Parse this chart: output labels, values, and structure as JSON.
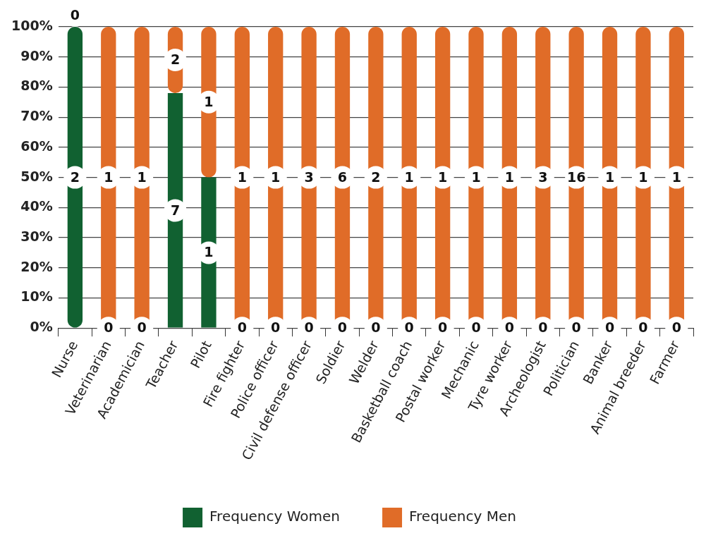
{
  "chart_data": {
    "type": "bar",
    "stacked": true,
    "categories": [
      "Nurse",
      "Veterinarian",
      "Academician",
      "Teacher",
      "Pilot",
      "Fire fighter",
      "Police officer",
      "Civil defense officer",
      "Soldier",
      "Welder",
      "Basketball coach",
      "Postal worker",
      "Mechanic",
      "Tyre worker",
      "Archeologist",
      "Politician",
      "Banker",
      "Animal breeder",
      "Farmer"
    ],
    "series": [
      {
        "name": "Frequency Women",
        "color": "#116131",
        "values": [
          100,
          0,
          0,
          78,
          50,
          0,
          0,
          0,
          0,
          0,
          0,
          0,
          0,
          0,
          0,
          0,
          0,
          0,
          0
        ]
      },
      {
        "name": "Frequency Men",
        "color": "#e06c28",
        "values": [
          0,
          100,
          100,
          22,
          50,
          100,
          100,
          100,
          100,
          100,
          100,
          100,
          100,
          100,
          100,
          100,
          100,
          100,
          100
        ]
      }
    ],
    "annotations": [
      {
        "text": "2",
        "x": "Nurse",
        "y": 50
      },
      {
        "text": "0",
        "x": "Nurse",
        "y": 100
      },
      {
        "text": "0",
        "x": "Veterinarian",
        "y": 0
      },
      {
        "text": "1",
        "x": "Veterinarian",
        "y": 50
      },
      {
        "text": "0",
        "x": "Academician",
        "y": 0
      },
      {
        "text": "1",
        "x": "Academician",
        "y": 50
      },
      {
        "text": "7",
        "x": "Teacher",
        "y": 39
      },
      {
        "text": "2",
        "x": "Teacher",
        "y": 89
      },
      {
        "text": "1",
        "x": "Pilot",
        "y": 25
      },
      {
        "text": "1",
        "x": "Pilot",
        "y": 75
      },
      {
        "text": "0",
        "x": "Fire fighter",
        "y": 0
      },
      {
        "text": "1",
        "x": "Fire fighter",
        "y": 50
      },
      {
        "text": "0",
        "x": "Police officer",
        "y": 0
      },
      {
        "text": "1",
        "x": "Police officer",
        "y": 50
      },
      {
        "text": "0",
        "x": "Civil defense officer",
        "y": 0
      },
      {
        "text": "3",
        "x": "Civil defense officer",
        "y": 50
      },
      {
        "text": "0",
        "x": "Soldier",
        "y": 0
      },
      {
        "text": "6",
        "x": "Soldier",
        "y": 50
      },
      {
        "text": "0",
        "x": "Welder",
        "y": 0
      },
      {
        "text": "2",
        "x": "Welder",
        "y": 50
      },
      {
        "text": "0",
        "x": "Basketball coach",
        "y": 0
      },
      {
        "text": "1",
        "x": "Basketball coach",
        "y": 50
      },
      {
        "text": "0",
        "x": "Postal worker",
        "y": 0
      },
      {
        "text": "1",
        "x": "Postal worker",
        "y": 50
      },
      {
        "text": "0",
        "x": "Mechanic",
        "y": 0
      },
      {
        "text": "1",
        "x": "Mechanic",
        "y": 50
      },
      {
        "text": "0",
        "x": "Tyre worker",
        "y": 0
      },
      {
        "text": "1",
        "x": "Tyre worker",
        "y": 50
      },
      {
        "text": "0",
        "x": "Archeologist",
        "y": 0
      },
      {
        "text": "3",
        "x": "Archeologist",
        "y": 50
      },
      {
        "text": "0",
        "x": "Politician",
        "y": 0
      },
      {
        "text": "16",
        "x": "Politician",
        "y": 50
      },
      {
        "text": "0",
        "x": "Banker",
        "y": 0
      },
      {
        "text": "1",
        "x": "Banker",
        "y": 50
      },
      {
        "text": "0",
        "x": "Animal breeder",
        "y": 0
      },
      {
        "text": "1",
        "x": "Animal breeder",
        "y": 50
      },
      {
        "text": "0",
        "x": "Farmer",
        "y": 0
      },
      {
        "text": "1",
        "x": "Farmer",
        "y": 50
      }
    ],
    "ylim": [
      0,
      100
    ],
    "yticks": [
      {
        "value": 0,
        "label": "0%"
      },
      {
        "value": 10,
        "label": "10%"
      },
      {
        "value": 20,
        "label": "20%"
      },
      {
        "value": 30,
        "label": "30%"
      },
      {
        "value": 40,
        "label": "40%"
      },
      {
        "value": 50,
        "label": "50%"
      },
      {
        "value": 60,
        "label": "60%"
      },
      {
        "value": 70,
        "label": "70%"
      },
      {
        "value": 80,
        "label": "80%"
      },
      {
        "value": 90,
        "label": "90%"
      },
      {
        "value": 100,
        "label": "100%"
      }
    ],
    "grid": "y",
    "legend": "bottom"
  }
}
